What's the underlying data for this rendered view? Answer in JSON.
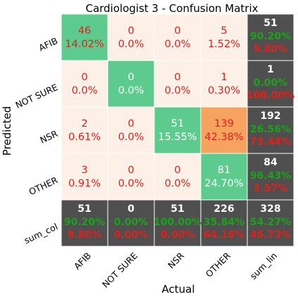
{
  "chart_data": {
    "type": "heatmap",
    "title": "Cardiologist 3 - Confusion Matrix",
    "xlabel": "Actual",
    "ylabel": "Predicted",
    "x_categories": [
      "AFIB",
      "NOT SURE",
      "NSR",
      "OTHER",
      "sum_lin"
    ],
    "y_categories": [
      "AFIB",
      "NOT SURE",
      "NSR",
      "OTHER",
      "sum_col"
    ],
    "matrix": [
      [
        {
          "count": "46",
          "pct": "14.02%",
          "fill": "#5ecb8e"
        },
        {
          "count": "0",
          "pct": "0.0%",
          "fill": "#fdf1e7"
        },
        {
          "count": "0",
          "pct": "0.0%",
          "fill": "#fdf1e7"
        },
        {
          "count": "5",
          "pct": "1.52%",
          "fill": "#fdf1e7"
        },
        {
          "count": "51",
          "top": "90.20%",
          "bottom": "9.80%",
          "fill": "#4f4f4f",
          "summary": true
        }
      ],
      [
        {
          "count": "0",
          "pct": "0.0%",
          "fill": "#fdf1e7"
        },
        {
          "count": "0",
          "pct": "0.0%",
          "fill": "#5ecb8e",
          "light": true
        },
        {
          "count": "0",
          "pct": "0.0%",
          "fill": "#fdf1e7"
        },
        {
          "count": "1",
          "pct": "0.30%",
          "fill": "#fdf1e7"
        },
        {
          "count": "1",
          "top": "0.00%",
          "bottom": "100.00%",
          "fill": "#4f4f4f",
          "summary": true
        }
      ],
      [
        {
          "count": "2",
          "pct": "0.61%",
          "fill": "#fdf1e7"
        },
        {
          "count": "0",
          "pct": "0.0%",
          "fill": "#fdf1e7"
        },
        {
          "count": "51",
          "pct": "15.55%",
          "fill": "#5ecb8e",
          "light": true
        },
        {
          "count": "139",
          "pct": "42.38%",
          "fill": "#f6a35f"
        },
        {
          "count": "192",
          "top": "26.56%",
          "bottom": "73.44%",
          "fill": "#4f4f4f",
          "summary": true
        }
      ],
      [
        {
          "count": "3",
          "pct": "0.91%",
          "fill": "#fdf1e7"
        },
        {
          "count": "0",
          "pct": "0.0%",
          "fill": "#fdf1e7"
        },
        {
          "count": "0",
          "pct": "0.0%",
          "fill": "#fdf1e7"
        },
        {
          "count": "81",
          "pct": "24.70%",
          "fill": "#5ecb8e",
          "light": true
        },
        {
          "count": "84",
          "top": "96.43%",
          "bottom": "3.57%",
          "fill": "#4f4f4f",
          "summary": true
        }
      ],
      [
        {
          "count": "51",
          "top": "90.20%",
          "bottom": "9.80%",
          "fill": "#4f4f4f",
          "summary": true
        },
        {
          "count": "0",
          "top": "0.00%",
          "bottom": "0.00%",
          "fill": "#4f4f4f",
          "summary": true
        },
        {
          "count": "51",
          "top": "100.00%",
          "bottom": "0.00%",
          "fill": "#4f4f4f",
          "summary": true
        },
        {
          "count": "226",
          "top": "35.84%",
          "bottom": "64.16%",
          "fill": "#4f4f4f",
          "summary": true
        },
        {
          "count": "328",
          "top": "54.27%",
          "bottom": "45.73%",
          "fill": "#4f4f4f",
          "summary": true,
          "total": true
        }
      ]
    ],
    "colors": {
      "diagonal": "#5ecb8e",
      "off_diagonal": "#fdf1e7",
      "high_error": "#f6a35f",
      "summary": "#4f4f4f",
      "error_text": "#e0201b",
      "correct_text": "#1aa31a"
    },
    "grid": true,
    "legend": "none"
  }
}
